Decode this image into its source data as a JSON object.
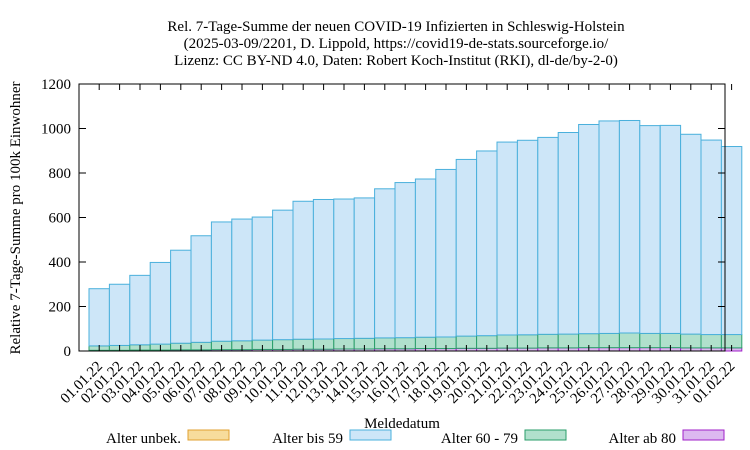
{
  "chart_data": {
    "type": "bar",
    "stacked": true,
    "title_lines": [
      "Rel. 7-Tage-Summe der neuen COVID-19 Infizierten in Schleswig-Holstein",
      "(2025-03-09/2201, D. Lippold, https://covid19-de-stats.sourceforge.io/",
      "Lizenz: CC BY-ND 4.0, Daten: Robert Koch-Institut (RKI), dl-de/by-2-0)"
    ],
    "xlabel": "Meldedatum",
    "ylabel": "Relative 7-Tage-Summe pro 100k Einwohner",
    "ylim": [
      0,
      1200
    ],
    "yticks": [
      0,
      200,
      400,
      600,
      800,
      1000,
      1200
    ],
    "grid": false,
    "legend_position": "bottom",
    "categories": [
      "01.01.22",
      "02.01.22",
      "03.01.22",
      "04.01.22",
      "05.01.22",
      "06.01.22",
      "07.01.22",
      "08.01.22",
      "09.01.22",
      "10.01.22",
      "11.01.22",
      "12.01.22",
      "13.01.22",
      "14.01.22",
      "15.01.22",
      "16.01.22",
      "17.01.22",
      "18.01.22",
      "19.01.22",
      "20.01.22",
      "21.01.22",
      "22.01.22",
      "23.01.22",
      "24.01.22",
      "25.01.22",
      "26.01.22",
      "27.01.22",
      "28.01.22",
      "29.01.22",
      "30.01.22",
      "31.01.22",
      "01.02.22"
    ],
    "series": [
      {
        "name": "Alter unbek.",
        "color": "#f7dc9c",
        "stroke": "#e0a030",
        "values": [
          0,
          0,
          0,
          0,
          0,
          0,
          0,
          0,
          0,
          0,
          0,
          0,
          0,
          0,
          0,
          0,
          0,
          0,
          0,
          0,
          0,
          0,
          0,
          0,
          0,
          0,
          0,
          0,
          0,
          0,
          0,
          0
        ]
      },
      {
        "name": "Alter ab 80",
        "color": "#dcb8f0",
        "stroke": "#a020c8",
        "values": [
          3,
          3,
          4,
          4,
          5,
          5,
          6,
          6,
          7,
          7,
          8,
          8,
          9,
          9,
          10,
          10,
          11,
          11,
          12,
          12,
          13,
          13,
          14,
          14,
          15,
          15,
          15,
          15,
          15,
          14,
          14,
          14
        ]
      },
      {
        "name": "Alter 60 - 79",
        "color": "#b0e0cc",
        "stroke": "#2a9e6a",
        "values": [
          20,
          22,
          24,
          27,
          30,
          34,
          38,
          40,
          42,
          44,
          45,
          46,
          47,
          48,
          49,
          50,
          51,
          52,
          55,
          57,
          59,
          60,
          61,
          62,
          63,
          64,
          66,
          64,
          64,
          62,
          60,
          60
        ]
      },
      {
        "name": "Alter bis 59",
        "color": "#cde6f8",
        "stroke": "#4ab0dc",
        "values": [
          257,
          275,
          312,
          367,
          418,
          479,
          536,
          547,
          553,
          582,
          620,
          627,
          627,
          631,
          670,
          697,
          711,
          753,
          794,
          830,
          867,
          874,
          885,
          906,
          940,
          955,
          955,
          934,
          935,
          898,
          874,
          845
        ]
      }
    ],
    "totals": [
      280,
      300,
      340,
      398,
      453,
      518,
      580,
      593,
      602,
      633,
      673,
      681,
      683,
      688,
      729,
      757,
      773,
      816,
      861,
      899,
      939,
      947,
      960,
      982,
      1018,
      1034,
      1036,
      1013,
      1014,
      974,
      948,
      919
    ],
    "legend_order": [
      "Alter unbek.",
      "Alter bis 59",
      "Alter 60 - 79",
      "Alter ab 80"
    ]
  }
}
